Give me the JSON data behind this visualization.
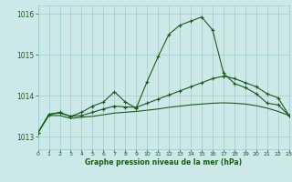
{
  "title": "Graphe pression niveau de la mer (hPa)",
  "background_color": "#cce8e8",
  "grid_color": "#99cccc",
  "line_color": "#1a5c1a",
  "xlim": [
    0,
    23
  ],
  "ylim": [
    1012.7,
    1016.2
  ],
  "yticks": [
    1013,
    1014,
    1015,
    1016
  ],
  "xticks": [
    0,
    1,
    2,
    3,
    4,
    5,
    6,
    7,
    8,
    9,
    10,
    11,
    12,
    13,
    14,
    15,
    16,
    17,
    18,
    19,
    20,
    21,
    22,
    23
  ],
  "line1_x": [
    0,
    1,
    2,
    3,
    4,
    5,
    6,
    7,
    8,
    9,
    10,
    11,
    12,
    13,
    14,
    15,
    16,
    17,
    18,
    19,
    20,
    21,
    22,
    23
  ],
  "line1_y": [
    1013.1,
    1013.55,
    1013.6,
    1013.5,
    1013.6,
    1013.75,
    1013.85,
    1014.1,
    1013.85,
    1013.7,
    1014.35,
    1014.95,
    1015.5,
    1015.72,
    1015.82,
    1015.92,
    1015.6,
    1014.55,
    1014.3,
    1014.2,
    1014.05,
    1013.82,
    1013.78,
    1013.52
  ],
  "line2_x": [
    0,
    1,
    2,
    3,
    4,
    5,
    6,
    7,
    8,
    9,
    10,
    11,
    12,
    13,
    14,
    15,
    16,
    17,
    18,
    19,
    20,
    21,
    22,
    23
  ],
  "line2_y": [
    1013.1,
    1013.55,
    1013.58,
    1013.5,
    1013.52,
    1013.6,
    1013.68,
    1013.75,
    1013.73,
    1013.72,
    1013.82,
    1013.92,
    1014.02,
    1014.12,
    1014.22,
    1014.32,
    1014.42,
    1014.48,
    1014.42,
    1014.32,
    1014.22,
    1014.05,
    1013.95,
    1013.52
  ],
  "line3_x": [
    0,
    1,
    2,
    3,
    4,
    5,
    6,
    7,
    8,
    9,
    10,
    11,
    12,
    13,
    14,
    15,
    16,
    17,
    18,
    19,
    20,
    21,
    22,
    23
  ],
  "line3_y": [
    1013.1,
    1013.52,
    1013.52,
    1013.45,
    1013.48,
    1013.5,
    1013.54,
    1013.58,
    1013.6,
    1013.62,
    1013.65,
    1013.68,
    1013.72,
    1013.75,
    1013.78,
    1013.8,
    1013.82,
    1013.83,
    1013.82,
    1013.8,
    1013.76,
    1013.7,
    1013.62,
    1013.52
  ]
}
